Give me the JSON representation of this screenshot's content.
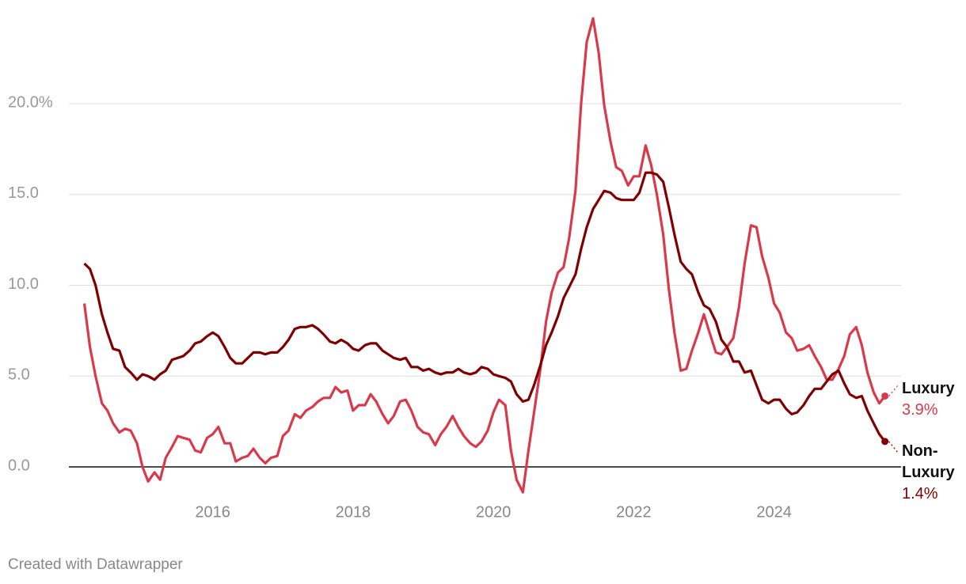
{
  "chart_data": {
    "type": "line",
    "x": [
      2014.17,
      2014.25,
      2014.33,
      2014.42,
      2014.5,
      2014.58,
      2014.67,
      2014.75,
      2014.83,
      2014.92,
      2015.0,
      2015.08,
      2015.17,
      2015.25,
      2015.33,
      2015.42,
      2015.5,
      2015.58,
      2015.67,
      2015.75,
      2015.83,
      2015.92,
      2016.0,
      2016.08,
      2016.17,
      2016.25,
      2016.33,
      2016.42,
      2016.5,
      2016.58,
      2016.67,
      2016.75,
      2016.83,
      2016.92,
      2017.0,
      2017.08,
      2017.17,
      2017.25,
      2017.33,
      2017.42,
      2017.5,
      2017.58,
      2017.67,
      2017.75,
      2017.83,
      2017.92,
      2018.0,
      2018.08,
      2018.17,
      2018.25,
      2018.33,
      2018.42,
      2018.5,
      2018.58,
      2018.67,
      2018.75,
      2018.83,
      2018.92,
      2019.0,
      2019.08,
      2019.17,
      2019.25,
      2019.33,
      2019.42,
      2019.5,
      2019.58,
      2019.67,
      2019.75,
      2019.83,
      2019.92,
      2020.0,
      2020.08,
      2020.17,
      2020.25,
      2020.33,
      2020.42,
      2020.5,
      2020.58,
      2020.67,
      2020.75,
      2020.83,
      2020.92,
      2021.0,
      2021.08,
      2021.17,
      2021.25,
      2021.33,
      2021.42,
      2021.5,
      2021.58,
      2021.67,
      2021.75,
      2021.83,
      2021.92,
      2022.0,
      2022.08,
      2022.17,
      2022.25,
      2022.33,
      2022.42,
      2022.5,
      2022.58,
      2022.67,
      2022.75,
      2022.83,
      2022.92,
      2023.0,
      2023.08,
      2023.17,
      2023.25,
      2023.33,
      2023.42,
      2023.5,
      2023.58,
      2023.67,
      2023.75,
      2023.83,
      2023.92,
      2024.0,
      2024.08,
      2024.17,
      2024.25,
      2024.33,
      2024.42,
      2024.5,
      2024.58,
      2024.67,
      2024.75,
      2024.83,
      2024.92,
      2025.0,
      2025.08,
      2025.17,
      2025.25,
      2025.33,
      2025.42,
      2025.5,
      2025.58
    ],
    "series": [
      {
        "name": "Luxury",
        "color": "#d93a4b",
        "values": [
          9.0,
          6.6,
          5.0,
          3.5,
          3.1,
          2.4,
          1.9,
          2.1,
          2.0,
          1.3,
          0.0,
          -0.8,
          -0.3,
          -0.7,
          0.5,
          1.1,
          1.7,
          1.6,
          1.5,
          0.9,
          0.8,
          1.6,
          1.8,
          2.2,
          1.3,
          1.3,
          0.3,
          0.5,
          0.6,
          1.0,
          0.5,
          0.2,
          0.5,
          0.6,
          1.7,
          2.0,
          2.9,
          2.7,
          3.1,
          3.3,
          3.6,
          3.8,
          3.8,
          4.4,
          4.1,
          4.2,
          3.1,
          3.4,
          3.4,
          4.0,
          3.6,
          2.9,
          2.4,
          2.8,
          3.6,
          3.7,
          3.1,
          2.2,
          1.9,
          1.8,
          1.2,
          1.8,
          2.2,
          2.8,
          2.2,
          1.7,
          1.3,
          1.1,
          1.4,
          2.0,
          3.0,
          3.7,
          3.4,
          0.9,
          -0.7,
          -1.4,
          0.9,
          3.0,
          5.4,
          8.0,
          9.6,
          10.7,
          11.0,
          12.6,
          15.2,
          20.0,
          23.4,
          24.7,
          22.8,
          19.9,
          17.9,
          16.5,
          16.3,
          15.5,
          16.0,
          16.0,
          17.7,
          16.6,
          15.0,
          12.8,
          9.8,
          7.4,
          5.3,
          5.4,
          6.4,
          7.4,
          8.4,
          7.4,
          6.3,
          6.2,
          6.6,
          7.1,
          8.8,
          11.2,
          13.3,
          13.2,
          11.6,
          10.4,
          9.0,
          8.5,
          7.4,
          7.1,
          6.4,
          6.5,
          6.7,
          6.1,
          5.5,
          4.8,
          4.8,
          5.4,
          6.1,
          7.3,
          7.7,
          6.7,
          5.2,
          4.1,
          3.5,
          3.9
        ],
        "value_labels": [
          null,
          null,
          null,
          null,
          null,
          null,
          null,
          null,
          null,
          null,
          null,
          null,
          null,
          null,
          null,
          null,
          null,
          null,
          null,
          null,
          null,
          null,
          null,
          null,
          null,
          null,
          null,
          null,
          null,
          null,
          null,
          null,
          null,
          null,
          null,
          null,
          null,
          null,
          null,
          null,
          null,
          null,
          null,
          null,
          null,
          null,
          null,
          null,
          null,
          null,
          null,
          null,
          null,
          null,
          null,
          null,
          null,
          null,
          null,
          null,
          null,
          null,
          null,
          null,
          null,
          null,
          null,
          null,
          null,
          null,
          null,
          null,
          null,
          null,
          null,
          null,
          null,
          null,
          null,
          null,
          null,
          null,
          null,
          null,
          null,
          null,
          null,
          null,
          null,
          null,
          null,
          null,
          null,
          null,
          null,
          null,
          null,
          null,
          null,
          null,
          null,
          null,
          null,
          null,
          null,
          null,
          null,
          null,
          null,
          null,
          null,
          null,
          null,
          null,
          null,
          null,
          null,
          null,
          null,
          null,
          null,
          null,
          null,
          null,
          null,
          null,
          null,
          null,
          null,
          null,
          null,
          null,
          null,
          null,
          null,
          null,
          null,
          "3.9%"
        ]
      },
      {
        "name": "Non-Luxury",
        "color": "#800000",
        "values": [
          11.2,
          10.9,
          10.0,
          8.4,
          7.4,
          6.5,
          6.4,
          5.5,
          5.2,
          4.8,
          5.1,
          5.0,
          4.8,
          5.1,
          5.3,
          5.9,
          6.0,
          6.1,
          6.4,
          6.8,
          6.9,
          7.2,
          7.4,
          7.2,
          6.6,
          6.0,
          5.7,
          5.7,
          6.0,
          6.3,
          6.3,
          6.2,
          6.3,
          6.3,
          6.6,
          7.0,
          7.6,
          7.7,
          7.7,
          7.8,
          7.6,
          7.3,
          6.9,
          6.8,
          7.0,
          6.8,
          6.5,
          6.4,
          6.7,
          6.8,
          6.8,
          6.4,
          6.2,
          6.0,
          5.9,
          6.0,
          5.5,
          5.5,
          5.3,
          5.4,
          5.2,
          5.1,
          5.2,
          5.2,
          5.4,
          5.2,
          5.1,
          5.2,
          5.5,
          5.4,
          5.1,
          5.0,
          4.9,
          4.7,
          4.0,
          3.6,
          3.7,
          4.5,
          5.6,
          6.7,
          7.4,
          8.3,
          9.3,
          9.9,
          10.6,
          12.0,
          13.2,
          14.2,
          14.7,
          15.2,
          15.1,
          14.8,
          14.7,
          14.7,
          14.7,
          15.1,
          16.2,
          16.2,
          16.1,
          15.7,
          14.3,
          12.8,
          11.3,
          10.9,
          10.6,
          9.6,
          8.9,
          8.7,
          8.0,
          7.0,
          6.6,
          5.8,
          5.8,
          5.2,
          5.3,
          4.5,
          3.7,
          3.5,
          3.7,
          3.7,
          3.2,
          2.9,
          3.0,
          3.4,
          3.9,
          4.3,
          4.3,
          4.7,
          5.1,
          5.3,
          4.6,
          4.0,
          3.8,
          3.9,
          3.1,
          2.4,
          1.8,
          1.4
        ],
        "value_labels": [
          null,
          null,
          null,
          null,
          null,
          null,
          null,
          null,
          null,
          null,
          null,
          null,
          null,
          null,
          null,
          null,
          null,
          null,
          null,
          null,
          null,
          null,
          null,
          null,
          null,
          null,
          null,
          null,
          null,
          null,
          null,
          null,
          null,
          null,
          null,
          null,
          null,
          null,
          null,
          null,
          null,
          null,
          null,
          null,
          null,
          null,
          null,
          null,
          null,
          null,
          null,
          null,
          null,
          null,
          null,
          null,
          null,
          null,
          null,
          null,
          null,
          null,
          null,
          null,
          null,
          null,
          null,
          null,
          null,
          null,
          null,
          null,
          null,
          null,
          null,
          null,
          null,
          null,
          null,
          null,
          null,
          null,
          null,
          null,
          null,
          null,
          null,
          null,
          null,
          null,
          null,
          null,
          null,
          null,
          null,
          null,
          null,
          null,
          null,
          null,
          null,
          null,
          null,
          null,
          null,
          null,
          null,
          null,
          null,
          null,
          null,
          null,
          null,
          null,
          null,
          null,
          null,
          null,
          null,
          null,
          null,
          null,
          null,
          null,
          null,
          null,
          null,
          null,
          null,
          null,
          null,
          null,
          null,
          null,
          null,
          null,
          null,
          "1.4%"
        ]
      }
    ],
    "xlim": [
      2013.95,
      2025.81
    ],
    "xticks": [
      2016,
      2018,
      2020,
      2022,
      2024
    ],
    "ylim": [
      -1.8,
      25.3
    ],
    "yticks": [
      {
        "value": 0,
        "label": "0.0"
      },
      {
        "value": 5,
        "label": "5.0"
      },
      {
        "value": 10,
        "label": "10.0"
      },
      {
        "value": 15,
        "label": "15.0"
      },
      {
        "value": 20,
        "label": "20.0%"
      }
    ],
    "grid": true,
    "footer": "Created with Datawrapper"
  }
}
